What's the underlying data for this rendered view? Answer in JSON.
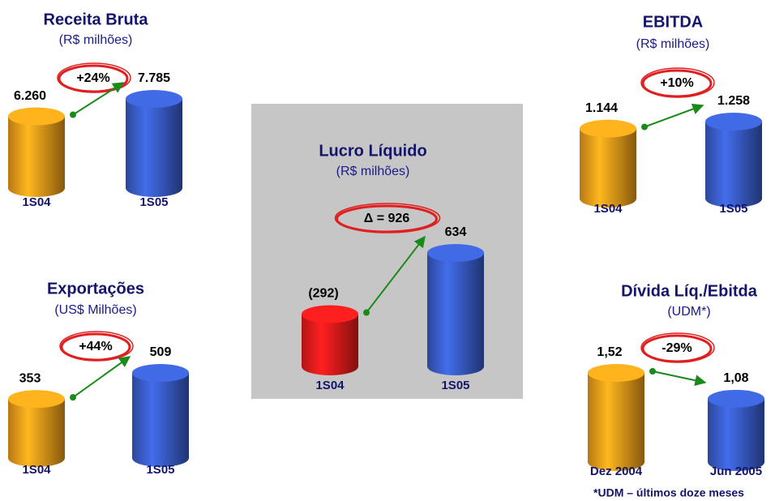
{
  "chart_data": [
    {
      "type": "bar",
      "title": "Receita Bruta",
      "subtitle": "(R$ milhões)",
      "annotation": "+24%",
      "categories": [
        "1S04",
        "1S05"
      ],
      "values": [
        6260,
        7785
      ],
      "value_labels": [
        "6.260",
        "7.785"
      ],
      "colors": [
        "#f5a01a",
        "#3a5fcd"
      ]
    },
    {
      "type": "bar",
      "title": "Exportações",
      "subtitle": "(US$ Milhões)",
      "annotation": "+44%",
      "categories": [
        "1S04",
        "1S05"
      ],
      "values": [
        353,
        509
      ],
      "colors": [
        "#f5a01a",
        "#3a5fcd"
      ]
    },
    {
      "type": "bar",
      "title": "Lucro Líquido",
      "subtitle": "(R$ milhões)",
      "annotation": "Δ = 926",
      "categories": [
        "1S04",
        "1S05"
      ],
      "values": [
        -292,
        634
      ],
      "value_labels": [
        "(292)",
        "634"
      ],
      "colors": [
        "#ee1c1c",
        "#3a5fcd"
      ]
    },
    {
      "type": "bar",
      "title": "EBITDA",
      "subtitle": "(R$ milhões)",
      "annotation": "+10%",
      "categories": [
        "1S04",
        "1S05"
      ],
      "values": [
        1144,
        1258
      ],
      "value_labels": [
        "1.144",
        "1.258"
      ],
      "colors": [
        "#f5a01a",
        "#3a5fcd"
      ]
    },
    {
      "type": "bar",
      "title": "Dívida Líq./Ebitda",
      "subtitle": "(UDM*)",
      "annotation": "-29%",
      "categories": [
        "Dez 2004",
        "Jun 2005"
      ],
      "values": [
        1.52,
        1.08
      ],
      "value_labels": [
        "1,52",
        "1,08"
      ],
      "colors": [
        "#f5a01a",
        "#3a5fcd"
      ],
      "note": "*UDM – últimos doze meses"
    }
  ]
}
